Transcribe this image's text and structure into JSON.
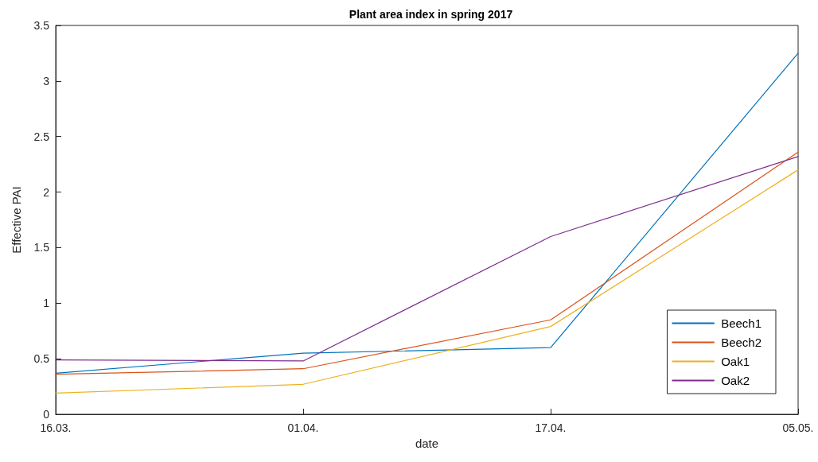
{
  "chart_data": {
    "type": "line",
    "title": "Plant area index in spring 2017",
    "xlabel": "date",
    "ylabel": "Effective PAI",
    "categories": [
      "16.03.",
      "01.04.",
      "17.04.",
      "05.05."
    ],
    "series": [
      {
        "name": "Beech1",
        "color": "#0072bd",
        "values": [
          0.37,
          0.55,
          0.6,
          3.25
        ]
      },
      {
        "name": "Beech2",
        "color": "#d95319",
        "values": [
          0.36,
          0.41,
          0.85,
          2.36
        ]
      },
      {
        "name": "Oak1",
        "color": "#edb120",
        "values": [
          0.19,
          0.27,
          0.79,
          2.2
        ]
      },
      {
        "name": "Oak2",
        "color": "#7e2f8e",
        "values": [
          0.49,
          0.48,
          1.6,
          2.32
        ]
      }
    ],
    "ylim": [
      0,
      3.5
    ],
    "yticks": [
      0,
      0.5,
      1,
      1.5,
      2,
      2.5,
      3,
      3.5
    ],
    "grid": false,
    "legend": "bottom right",
    "marker": "none",
    "line_style": "solid"
  }
}
